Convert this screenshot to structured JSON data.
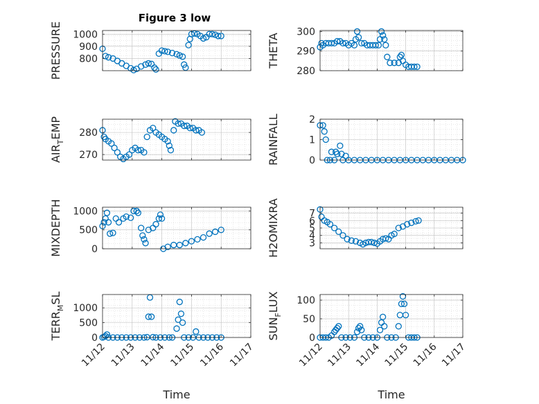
{
  "figure_title": "Figure 3 low",
  "colors": {
    "marker": "#0072BD",
    "axis": "#262626",
    "grid": "#d0d0d0"
  },
  "chart_data": [
    {
      "type": "scatter",
      "ylabel": "PRESSURE",
      "xlabel": "",
      "xlim": [
        0,
        5
      ],
      "ylim": [
        700,
        1030
      ],
      "yticks": [
        800,
        900,
        1000
      ],
      "xtick_labels": [
        "11/12",
        "11/13",
        "11/14",
        "11/15",
        "11/16",
        "11/17"
      ],
      "show_xtick_labels": false,
      "points": [
        [
          0.0,
          880
        ],
        [
          0.1,
          820
        ],
        [
          0.2,
          810
        ],
        [
          0.35,
          800
        ],
        [
          0.5,
          780
        ],
        [
          0.65,
          760
        ],
        [
          0.8,
          740
        ],
        [
          0.95,
          720
        ],
        [
          1.05,
          705
        ],
        [
          1.15,
          715
        ],
        [
          1.3,
          735
        ],
        [
          1.45,
          750
        ],
        [
          1.55,
          760
        ],
        [
          1.65,
          755
        ],
        [
          1.75,
          725
        ],
        [
          1.8,
          710
        ],
        [
          1.9,
          840
        ],
        [
          2.0,
          865
        ],
        [
          2.1,
          860
        ],
        [
          2.2,
          855
        ],
        [
          2.35,
          845
        ],
        [
          2.5,
          835
        ],
        [
          2.6,
          825
        ],
        [
          2.7,
          815
        ],
        [
          2.75,
          750
        ],
        [
          2.8,
          725
        ],
        [
          2.9,
          910
        ],
        [
          2.95,
          960
        ],
        [
          3.0,
          1000
        ],
        [
          3.1,
          1005
        ],
        [
          3.2,
          1000
        ],
        [
          3.3,
          985
        ],
        [
          3.4,
          965
        ],
        [
          3.5,
          975
        ],
        [
          3.6,
          1000
        ],
        [
          3.7,
          1000
        ],
        [
          3.8,
          995
        ],
        [
          3.9,
          985
        ],
        [
          4.0,
          985
        ]
      ]
    },
    {
      "type": "scatter",
      "ylabel": "THETA",
      "xlabel": "",
      "xlim": [
        0,
        5
      ],
      "ylim": [
        280,
        300.5
      ],
      "yticks": [
        280,
        290,
        300
      ],
      "xtick_labels": [
        "11/12",
        "11/13",
        "11/14",
        "11/15",
        "11/16",
        "11/17"
      ],
      "show_xtick_labels": false,
      "points": [
        [
          0.0,
          292
        ],
        [
          0.05,
          294
        ],
        [
          0.1,
          293
        ],
        [
          0.2,
          294
        ],
        [
          0.3,
          294
        ],
        [
          0.4,
          294
        ],
        [
          0.5,
          294
        ],
        [
          0.6,
          295
        ],
        [
          0.7,
          295
        ],
        [
          0.8,
          294
        ],
        [
          0.9,
          294
        ],
        [
          1.0,
          293
        ],
        [
          1.1,
          294
        ],
        [
          1.2,
          293
        ],
        [
          1.25,
          296
        ],
        [
          1.3,
          300
        ],
        [
          1.35,
          297
        ],
        [
          1.45,
          294
        ],
        [
          1.55,
          294
        ],
        [
          1.65,
          293
        ],
        [
          1.75,
          293
        ],
        [
          1.85,
          293
        ],
        [
          1.95,
          293
        ],
        [
          2.05,
          293
        ],
        [
          2.1,
          296
        ],
        [
          2.15,
          300
        ],
        [
          2.2,
          298
        ],
        [
          2.25,
          296
        ],
        [
          2.3,
          293
        ],
        [
          2.35,
          287
        ],
        [
          2.45,
          284
        ],
        [
          2.6,
          284
        ],
        [
          2.75,
          284
        ],
        [
          2.8,
          287
        ],
        [
          2.85,
          288
        ],
        [
          2.9,
          285
        ],
        [
          3.0,
          283
        ],
        [
          3.1,
          282
        ],
        [
          3.2,
          282
        ],
        [
          3.3,
          282
        ],
        [
          3.4,
          282
        ]
      ]
    },
    {
      "type": "scatter",
      "ylabel": "AIR_TEMP",
      "ylabel_main": "AIR",
      "ylabel_sub": "T",
      "ylabel_rest": "EMP",
      "xlabel": "",
      "xlim": [
        0,
        5
      ],
      "ylim": [
        267.5,
        286
      ],
      "yticks": [
        270,
        280
      ],
      "xtick_labels": [
        "11/12",
        "11/13",
        "11/14",
        "11/15",
        "11/16",
        "11/17"
      ],
      "show_xtick_labels": false,
      "points": [
        [
          0.0,
          281
        ],
        [
          0.05,
          278
        ],
        [
          0.1,
          277
        ],
        [
          0.2,
          276
        ],
        [
          0.3,
          275
        ],
        [
          0.4,
          273
        ],
        [
          0.5,
          271
        ],
        [
          0.6,
          269
        ],
        [
          0.7,
          268
        ],
        [
          0.8,
          269
        ],
        [
          0.9,
          270
        ],
        [
          1.0,
          272
        ],
        [
          1.1,
          273
        ],
        [
          1.2,
          272
        ],
        [
          1.3,
          272
        ],
        [
          1.4,
          271
        ],
        [
          1.5,
          278
        ],
        [
          1.6,
          281
        ],
        [
          1.7,
          282
        ],
        [
          1.8,
          280
        ],
        [
          1.9,
          279
        ],
        [
          2.0,
          278
        ],
        [
          2.1,
          277
        ],
        [
          2.2,
          276
        ],
        [
          2.25,
          274
        ],
        [
          2.3,
          272
        ],
        [
          2.4,
          281
        ],
        [
          2.45,
          285
        ],
        [
          2.55,
          284
        ],
        [
          2.65,
          284
        ],
        [
          2.75,
          283
        ],
        [
          2.85,
          283
        ],
        [
          2.95,
          282
        ],
        [
          3.05,
          282
        ],
        [
          3.15,
          281
        ],
        [
          3.25,
          281
        ],
        [
          3.35,
          280
        ]
      ]
    },
    {
      "type": "scatter",
      "ylabel": "RAINFALL",
      "xlabel": "",
      "xlim": [
        0,
        5
      ],
      "ylim": [
        0,
        2
      ],
      "yticks": [
        0,
        1,
        2
      ],
      "xtick_labels": [
        "11/12",
        "11/13",
        "11/14",
        "11/15",
        "11/16",
        "11/17"
      ],
      "show_xtick_labels": false,
      "points": [
        [
          0.0,
          1.7
        ],
        [
          0.1,
          1.7
        ],
        [
          0.15,
          1.4
        ],
        [
          0.2,
          1.0
        ],
        [
          0.25,
          0.0
        ],
        [
          0.35,
          0.0
        ],
        [
          0.4,
          0.4
        ],
        [
          0.5,
          0.0
        ],
        [
          0.55,
          0.4
        ],
        [
          0.6,
          0.3
        ],
        [
          0.7,
          0.7
        ],
        [
          0.75,
          0.3
        ],
        [
          0.8,
          0.0
        ],
        [
          0.9,
          0.2
        ],
        [
          1.0,
          0.0
        ],
        [
          1.2,
          0.0
        ],
        [
          1.4,
          0.0
        ],
        [
          1.6,
          0.0
        ],
        [
          1.8,
          0.0
        ],
        [
          2.0,
          0.0
        ],
        [
          2.2,
          0.0
        ],
        [
          2.4,
          0.0
        ],
        [
          2.6,
          0.0
        ],
        [
          2.8,
          0.0
        ],
        [
          3.0,
          0.0
        ],
        [
          3.2,
          0.0
        ],
        [
          3.4,
          0.0
        ],
        [
          3.6,
          0.0
        ],
        [
          3.8,
          0.0
        ],
        [
          4.0,
          0.0
        ],
        [
          4.2,
          0.0
        ],
        [
          4.4,
          0.0
        ],
        [
          4.6,
          0.0
        ],
        [
          4.8,
          0.0
        ],
        [
          5.0,
          0.0
        ]
      ]
    },
    {
      "type": "scatter",
      "ylabel": "MIXDEPTH",
      "xlabel": "",
      "xlim": [
        0,
        5
      ],
      "ylim": [
        0,
        1100
      ],
      "yticks": [
        0,
        500,
        1000
      ],
      "xtick_labels": [
        "11/12",
        "11/13",
        "11/14",
        "11/15",
        "11/16",
        "11/17"
      ],
      "show_xtick_labels": false,
      "points": [
        [
          0.0,
          600
        ],
        [
          0.05,
          700
        ],
        [
          0.1,
          800
        ],
        [
          0.15,
          950
        ],
        [
          0.2,
          700
        ],
        [
          0.25,
          400
        ],
        [
          0.35,
          420
        ],
        [
          0.45,
          800
        ],
        [
          0.55,
          700
        ],
        [
          0.7,
          800
        ],
        [
          0.8,
          850
        ],
        [
          0.95,
          820
        ],
        [
          1.05,
          1000
        ],
        [
          1.15,
          1000
        ],
        [
          1.2,
          950
        ],
        [
          1.3,
          550
        ],
        [
          1.35,
          350
        ],
        [
          1.4,
          250
        ],
        [
          1.45,
          150
        ],
        [
          1.55,
          500
        ],
        [
          1.7,
          550
        ],
        [
          1.8,
          650
        ],
        [
          1.9,
          800
        ],
        [
          1.95,
          900
        ],
        [
          2.0,
          800
        ],
        [
          2.05,
          0
        ],
        [
          2.2,
          50
        ],
        [
          2.4,
          100
        ],
        [
          2.6,
          100
        ],
        [
          2.8,
          150
        ],
        [
          3.0,
          200
        ],
        [
          3.2,
          250
        ],
        [
          3.4,
          300
        ],
        [
          3.6,
          400
        ],
        [
          3.8,
          450
        ],
        [
          4.0,
          500
        ]
      ]
    },
    {
      "type": "scatter",
      "ylabel": "H2OMIXRA",
      "xlabel": "",
      "xlim": [
        0,
        5
      ],
      "ylim": [
        2.2,
        7.8
      ],
      "yticks": [
        3,
        4,
        5,
        6,
        7
      ],
      "xtick_labels": [
        "11/12",
        "11/13",
        "11/14",
        "11/15",
        "11/16",
        "11/17"
      ],
      "show_xtick_labels": false,
      "points": [
        [
          0.0,
          7.5
        ],
        [
          0.05,
          6.5
        ],
        [
          0.15,
          6.0
        ],
        [
          0.25,
          5.8
        ],
        [
          0.35,
          5.5
        ],
        [
          0.5,
          5.0
        ],
        [
          0.65,
          4.5
        ],
        [
          0.8,
          4.0
        ],
        [
          0.95,
          3.5
        ],
        [
          1.1,
          3.3
        ],
        [
          1.25,
          3.2
        ],
        [
          1.4,
          3.0
        ],
        [
          1.5,
          2.8
        ],
        [
          1.6,
          3.0
        ],
        [
          1.7,
          3.1
        ],
        [
          1.8,
          3.1
        ],
        [
          1.9,
          3.0
        ],
        [
          2.0,
          2.9
        ],
        [
          2.1,
          3.2
        ],
        [
          2.2,
          3.5
        ],
        [
          2.3,
          3.6
        ],
        [
          2.4,
          3.5
        ],
        [
          2.5,
          4.0
        ],
        [
          2.6,
          4.2
        ],
        [
          2.75,
          5.0
        ],
        [
          2.9,
          5.2
        ],
        [
          3.05,
          5.5
        ],
        [
          3.2,
          5.7
        ],
        [
          3.35,
          5.9
        ],
        [
          3.45,
          6.0
        ]
      ]
    },
    {
      "type": "scatter",
      "ylabel": "TERR_MSL",
      "ylabel_main": "TERR",
      "ylabel_sub": "M",
      "ylabel_rest": "SL",
      "xlabel": "Time",
      "xlim": [
        0,
        5
      ],
      "ylim": [
        0,
        1450
      ],
      "yticks": [
        0,
        500,
        1000
      ],
      "xtick_labels": [
        "11/12",
        "11/13",
        "11/14",
        "11/15",
        "11/16",
        "11/17"
      ],
      "show_xtick_labels": true,
      "points": [
        [
          0.0,
          0
        ],
        [
          0.05,
          20
        ],
        [
          0.1,
          50
        ],
        [
          0.15,
          100
        ],
        [
          0.2,
          0
        ],
        [
          0.35,
          0
        ],
        [
          0.5,
          0
        ],
        [
          0.65,
          0
        ],
        [
          0.8,
          0
        ],
        [
          0.95,
          0
        ],
        [
          1.1,
          0
        ],
        [
          1.25,
          0
        ],
        [
          1.4,
          0
        ],
        [
          1.5,
          10
        ],
        [
          1.55,
          700
        ],
        [
          1.6,
          1350
        ],
        [
          1.65,
          700
        ],
        [
          1.7,
          10
        ],
        [
          1.8,
          0
        ],
        [
          1.95,
          0
        ],
        [
          2.1,
          0
        ],
        [
          2.25,
          0
        ],
        [
          2.35,
          0
        ],
        [
          2.5,
          300
        ],
        [
          2.55,
          600
        ],
        [
          2.6,
          1200
        ],
        [
          2.65,
          800
        ],
        [
          2.7,
          500
        ],
        [
          2.75,
          0
        ],
        [
          2.9,
          0
        ],
        [
          3.05,
          0
        ],
        [
          3.15,
          200
        ],
        [
          3.25,
          0
        ],
        [
          3.4,
          0
        ],
        [
          3.55,
          0
        ],
        [
          3.7,
          0
        ],
        [
          3.85,
          0
        ],
        [
          4.0,
          0
        ]
      ]
    },
    {
      "type": "scatter",
      "ylabel": "SUN_FLUX",
      "ylabel_main": "SUN",
      "ylabel_sub": "F",
      "ylabel_rest": "LUX",
      "xlabel": "Time",
      "xlim": [
        0,
        5
      ],
      "ylim": [
        0,
        115
      ],
      "yticks": [
        0,
        50,
        100
      ],
      "xtick_labels": [
        "11/12",
        "11/13",
        "11/14",
        "11/15",
        "11/16",
        "11/17"
      ],
      "show_xtick_labels": true,
      "points": [
        [
          0.0,
          0
        ],
        [
          0.1,
          0
        ],
        [
          0.2,
          0
        ],
        [
          0.3,
          0
        ],
        [
          0.4,
          5
        ],
        [
          0.5,
          15
        ],
        [
          0.55,
          20
        ],
        [
          0.6,
          25
        ],
        [
          0.65,
          30
        ],
        [
          0.75,
          0
        ],
        [
          0.9,
          0
        ],
        [
          1.05,
          0
        ],
        [
          1.2,
          0
        ],
        [
          1.3,
          15
        ],
        [
          1.35,
          25
        ],
        [
          1.4,
          30
        ],
        [
          1.45,
          20
        ],
        [
          1.55,
          0
        ],
        [
          1.7,
          0
        ],
        [
          1.85,
          0
        ],
        [
          2.0,
          0
        ],
        [
          2.1,
          20
        ],
        [
          2.15,
          40
        ],
        [
          2.2,
          55
        ],
        [
          2.25,
          30
        ],
        [
          2.35,
          0
        ],
        [
          2.5,
          0
        ],
        [
          2.65,
          0
        ],
        [
          2.75,
          30
        ],
        [
          2.8,
          60
        ],
        [
          2.85,
          90
        ],
        [
          2.9,
          110
        ],
        [
          2.95,
          90
        ],
        [
          3.0,
          60
        ],
        [
          3.1,
          0
        ],
        [
          3.2,
          0
        ],
        [
          3.3,
          0
        ],
        [
          3.4,
          0
        ]
      ]
    }
  ]
}
